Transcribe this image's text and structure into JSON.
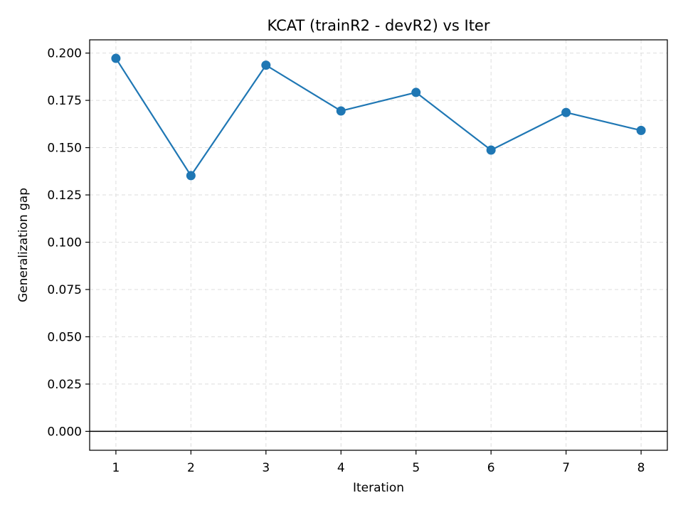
{
  "chart_data": {
    "type": "line",
    "title": "KCAT (trainR2 - devR2) vs Iter",
    "xlabel": "Iteration",
    "ylabel": "Generalization gap",
    "x": [
      1,
      2,
      3,
      4,
      5,
      6,
      7,
      8
    ],
    "series": [
      {
        "values": [
          0.1972,
          0.1352,
          0.1936,
          0.1694,
          0.1792,
          0.1487,
          0.1686,
          0.1591
        ],
        "color": "#1f77b4",
        "marker": "circle"
      }
    ],
    "xlim": [
      0.65,
      8.35
    ],
    "ylim": [
      -0.01,
      0.207
    ],
    "xticks": [
      1,
      2,
      3,
      4,
      5,
      6,
      7,
      8
    ],
    "xtick_labels": [
      "1",
      "2",
      "3",
      "4",
      "5",
      "6",
      "7",
      "8"
    ],
    "yticks": [
      0,
      0.025,
      0.05,
      0.075,
      0.1,
      0.125,
      0.15,
      0.175,
      0.2
    ],
    "ytick_labels": [
      "0.000",
      "0.025",
      "0.050",
      "0.075",
      "0.100",
      "0.125",
      "0.150",
      "0.175",
      "0.200"
    ],
    "reference_line": {
      "y": 0,
      "color": "#000000"
    },
    "grid": true,
    "grid_style": "dashed",
    "legend": "none"
  }
}
